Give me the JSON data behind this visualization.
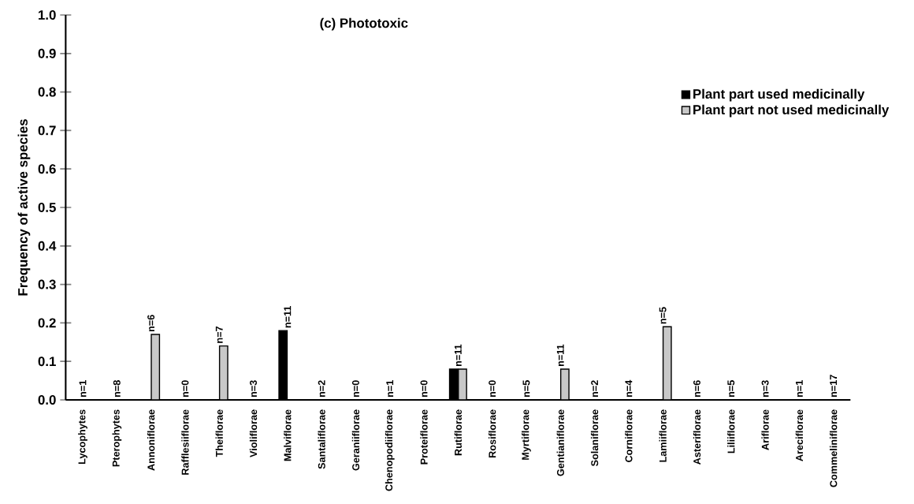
{
  "chart_data": {
    "type": "bar",
    "title": "(c) Phototoxic",
    "ylabel": "Frequency of active species",
    "categories": [
      "Lycophytes",
      "Pterophytes",
      "Annoniflorae",
      "Rafflesiiflorae",
      "Theiflorae",
      "Violiflorae",
      "Malviflorae",
      "Santaliflorae",
      "Geraniiflorae",
      "Chenopodiiflorae",
      "Proteiflorae",
      "Rutiflorae",
      "Rosiflorae",
      "Myrtiflorae",
      "Gentianiflorae",
      "Solaniflorae",
      "Corniflorae",
      "Lamiiflorae",
      "Asteriflorae",
      "Liliiflorae",
      "Ariflorae",
      "Areciflorae",
      "Commeliniflorae"
    ],
    "series": [
      {
        "name": "Plant part used medicinally",
        "color": "#000000",
        "values": [
          0,
          0,
          0,
          0,
          0,
          0,
          0.18,
          0,
          0,
          0,
          0,
          0.08,
          0,
          0,
          0,
          0,
          0,
          0,
          0,
          0,
          0,
          0,
          0
        ]
      },
      {
        "name": "Plant part not used medicinally",
        "color": "#c8c8c8",
        "values": [
          0,
          0,
          0.17,
          0,
          0.14,
          0,
          0,
          0,
          0,
          0,
          0,
          0.08,
          0,
          0,
          0.08,
          0,
          0,
          0.19,
          0,
          0,
          0,
          0,
          0
        ]
      }
    ],
    "ylim": [
      0,
      1.0
    ],
    "yticks": [
      {
        "value": 0,
        "label": "0.0"
      },
      0.1,
      0.2,
      0.3,
      0.4,
      0.5,
      0.6,
      0.7,
      0.8,
      0.9,
      {
        "value": 1,
        "label": "1.0"
      }
    ],
    "grid": false,
    "legend": "top right",
    "annotations": [
      {
        "text": "n=1",
        "x": "Lycophytes",
        "y": 0
      },
      {
        "text": "n=8",
        "x": "Pterophytes",
        "y": 0
      },
      {
        "text": "n=6",
        "x": "Annoniflorae",
        "y": 0.17
      },
      {
        "text": "n=0",
        "x": "Rafflesiiflorae",
        "y": 0
      },
      {
        "text": "n=7",
        "x": "Theiflorae",
        "y": 0.14
      },
      {
        "text": "n=3",
        "x": "Violiflorae",
        "y": 0
      },
      {
        "text": "n=11",
        "x": "Malviflorae",
        "y": 0.18
      },
      {
        "text": "n=2",
        "x": "Santaliflorae",
        "y": 0
      },
      {
        "text": "n=0",
        "x": "Geraniiflorae",
        "y": 0
      },
      {
        "text": "n=1",
        "x": "Chenopodiiflorae",
        "y": 0
      },
      {
        "text": "n=0",
        "x": "Proteiflorae",
        "y": 0
      },
      {
        "text": "n=11",
        "x": "Rutiflorae",
        "y": 0.08
      },
      {
        "text": "n=0",
        "x": "Rosiflorae",
        "y": 0
      },
      {
        "text": "n=5",
        "x": "Myrtiflorae",
        "y": 0
      },
      {
        "text": "n=11",
        "x": "Gentianiflorae",
        "y": 0.08
      },
      {
        "text": "n=2",
        "x": "Solaniflorae",
        "y": 0
      },
      {
        "text": "n=4",
        "x": "Corniflorae",
        "y": 0
      },
      {
        "text": "n=5",
        "x": "Lamiiflorae",
        "y": 0.19
      },
      {
        "text": "n=6",
        "x": "Asteriflorae",
        "y": 0
      },
      {
        "text": "n=5",
        "x": "Liliiflorae",
        "y": 0
      },
      {
        "text": "n=3",
        "x": "Ariflorae",
        "y": 0
      },
      {
        "text": "n=1",
        "x": "Areciflorae",
        "y": 0
      },
      {
        "text": "n=17",
        "x": "Commeliniflorae",
        "y": 0
      }
    ]
  }
}
